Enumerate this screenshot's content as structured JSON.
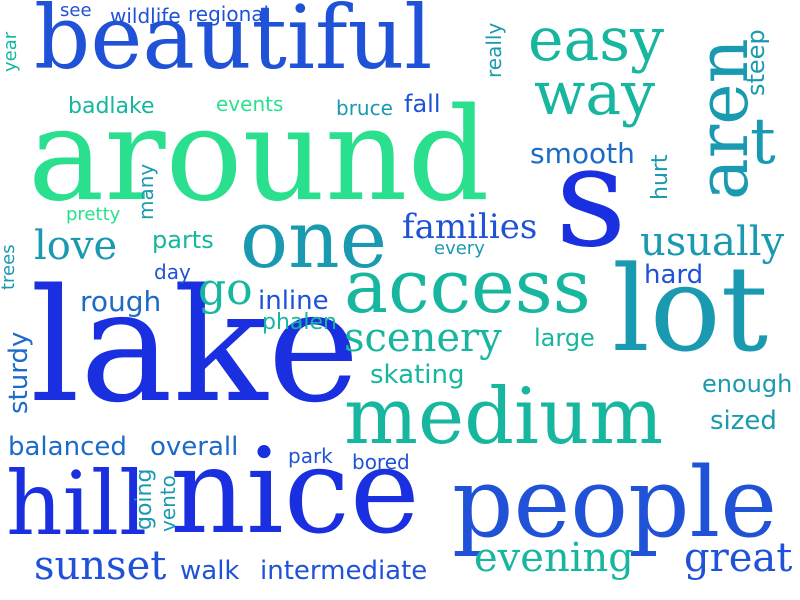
{
  "words": {
    "beautiful": "beautiful",
    "around": "around",
    "s": "s",
    "lake": "lake",
    "nice": "nice",
    "people": "people",
    "lot": "lot",
    "access": "access",
    "medium": "medium",
    "one": "one",
    "aren": "aren",
    "hill": "hill",
    "easy": "easy",
    "way": "way",
    "t": "t",
    "families": "families",
    "usually": "usually",
    "love": "love",
    "scenery": "scenery",
    "evening": "evening",
    "great": "great",
    "sunset": "sunset",
    "walk": "walk",
    "intermediate": "intermediate",
    "smooth": "smooth",
    "hard": "hard",
    "rough": "rough",
    "go": "go",
    "inline": "inline",
    "phalen": "phalen",
    "large": "large",
    "skating": "skating",
    "enough": "enough",
    "sized": "sized",
    "balanced": "balanced",
    "overall": "overall",
    "park": "park",
    "bored": "bored",
    "parts": "parts",
    "day": "day",
    "pretty": "pretty",
    "badlake": "badlake",
    "events": "events",
    "bruce": "bruce",
    "fall": "fall",
    "see": "see",
    "wildlife": "wildlife",
    "regional": "regional",
    "really": "really",
    "steep": "steep",
    "hurt": "hurt",
    "every": "every",
    "trees": "trees",
    "year": "year",
    "many": "many",
    "sturdy": "sturdy",
    "going": "going",
    "vento": "vento"
  }
}
